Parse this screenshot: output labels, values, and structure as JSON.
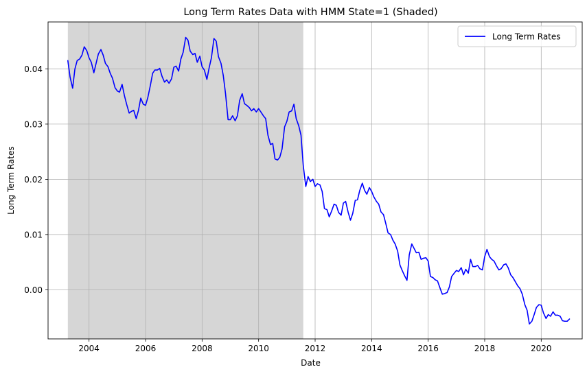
{
  "chart_data": {
    "type": "line",
    "title": "Long Term Rates Data with HMM State=1 (Shaded)",
    "xlabel": "Date",
    "ylabel": "Long Term Rates",
    "xlim": [
      2002.55,
      2021.45
    ],
    "ylim": [
      -0.0089,
      0.0485
    ],
    "grid": true,
    "legend": {
      "position": "top-right",
      "entries": [
        "Long Term Rates"
      ]
    },
    "x_ticks": [
      2004,
      2006,
      2008,
      2010,
      2012,
      2014,
      2016,
      2018,
      2020
    ],
    "x_tick_labels": [
      "2004",
      "2006",
      "2008",
      "2010",
      "2012",
      "2014",
      "2016",
      "2018",
      "2020"
    ],
    "y_ticks": [
      0.0,
      0.01,
      0.02,
      0.03,
      0.04
    ],
    "y_tick_labels": [
      "0.00",
      "0.01",
      "0.02",
      "0.03",
      "0.04"
    ],
    "shaded_regions": [
      {
        "from": 2003.25,
        "to": 2011.58,
        "state": 1
      }
    ],
    "colors": {
      "line": "#0000ff",
      "shade": "#d6d6d6",
      "grid": "#b0b0b0"
    },
    "series": [
      {
        "name": "Long Term Rates",
        "x": [
          2003.25,
          2003.33,
          2003.42,
          2003.5,
          2003.58,
          2003.67,
          2003.75,
          2003.83,
          2003.92,
          2004.0,
          2004.08,
          2004.17,
          2004.25,
          2004.33,
          2004.42,
          2004.5,
          2004.58,
          2004.67,
          2004.75,
          2004.83,
          2004.92,
          2005.0,
          2005.08,
          2005.17,
          2005.25,
          2005.33,
          2005.42,
          2005.5,
          2005.58,
          2005.67,
          2005.75,
          2005.83,
          2005.92,
          2006.0,
          2006.08,
          2006.17,
          2006.25,
          2006.33,
          2006.42,
          2006.5,
          2006.58,
          2006.67,
          2006.75,
          2006.83,
          2006.92,
          2007.0,
          2007.08,
          2007.17,
          2007.25,
          2007.33,
          2007.42,
          2007.5,
          2007.58,
          2007.67,
          2007.75,
          2007.83,
          2007.92,
          2008.0,
          2008.08,
          2008.17,
          2008.25,
          2008.33,
          2008.42,
          2008.5,
          2008.58,
          2008.67,
          2008.75,
          2008.83,
          2008.92,
          2009.0,
          2009.08,
          2009.17,
          2009.25,
          2009.33,
          2009.42,
          2009.5,
          2009.58,
          2009.67,
          2009.75,
          2009.83,
          2009.92,
          2010.0,
          2010.08,
          2010.17,
          2010.25,
          2010.33,
          2010.42,
          2010.5,
          2010.58,
          2010.67,
          2010.75,
          2010.83,
          2010.92,
          2011.0,
          2011.08,
          2011.17,
          2011.25,
          2011.33,
          2011.42,
          2011.5,
          2011.58,
          2011.67,
          2011.75,
          2011.83,
          2011.92,
          2012.0,
          2012.08,
          2012.17,
          2012.25,
          2012.33,
          2012.42,
          2012.5,
          2012.58,
          2012.67,
          2012.75,
          2012.83,
          2012.92,
          2013.0,
          2013.08,
          2013.17,
          2013.25,
          2013.33,
          2013.42,
          2013.5,
          2013.58,
          2013.67,
          2013.75,
          2013.83,
          2013.92,
          2014.0,
          2014.08,
          2014.17,
          2014.25,
          2014.33,
          2014.42,
          2014.5,
          2014.58,
          2014.67,
          2014.75,
          2014.83,
          2014.92,
          2015.0,
          2015.08,
          2015.17,
          2015.25,
          2015.33,
          2015.42,
          2015.5,
          2015.58,
          2015.67,
          2015.75,
          2015.83,
          2015.92,
          2016.0,
          2016.08,
          2016.17,
          2016.25,
          2016.33,
          2016.42,
          2016.5,
          2016.58,
          2016.67,
          2016.75,
          2016.83,
          2016.92,
          2017.0,
          2017.08,
          2017.17,
          2017.25,
          2017.33,
          2017.42,
          2017.5,
          2017.58,
          2017.67,
          2017.75,
          2017.83,
          2017.92,
          2018.0,
          2018.08,
          2018.17,
          2018.25,
          2018.33,
          2018.42,
          2018.5,
          2018.58,
          2018.67,
          2018.75,
          2018.83,
          2018.92,
          2019.0,
          2019.08,
          2019.17,
          2019.25,
          2019.33,
          2019.42,
          2019.5,
          2019.58,
          2019.67,
          2019.75,
          2019.83,
          2019.92,
          2020.0,
          2020.08,
          2020.17,
          2020.25,
          2020.33,
          2020.42,
          2020.5,
          2020.58,
          2020.67,
          2020.75,
          2020.83,
          2020.92,
          2021.0
        ],
        "values": [
          0.0415,
          0.0385,
          0.0365,
          0.04,
          0.0415,
          0.0418,
          0.0425,
          0.044,
          0.0433,
          0.042,
          0.0412,
          0.0393,
          0.041,
          0.0427,
          0.0435,
          0.0425,
          0.041,
          0.0404,
          0.0392,
          0.0383,
          0.0366,
          0.036,
          0.0358,
          0.0372,
          0.0352,
          0.0336,
          0.032,
          0.0323,
          0.0325,
          0.031,
          0.0325,
          0.0347,
          0.0336,
          0.0334,
          0.0348,
          0.037,
          0.0392,
          0.0398,
          0.0398,
          0.0401,
          0.0387,
          0.0376,
          0.038,
          0.0374,
          0.0382,
          0.0403,
          0.0405,
          0.0396,
          0.0418,
          0.043,
          0.0457,
          0.0452,
          0.0432,
          0.0426,
          0.0428,
          0.0412,
          0.0423,
          0.0404,
          0.0398,
          0.0381,
          0.0402,
          0.042,
          0.0455,
          0.045,
          0.0422,
          0.041,
          0.0388,
          0.0355,
          0.0308,
          0.0308,
          0.0315,
          0.0306,
          0.0315,
          0.0343,
          0.0355,
          0.0337,
          0.0334,
          0.033,
          0.0324,
          0.0328,
          0.0322,
          0.0328,
          0.0322,
          0.0315,
          0.031,
          0.028,
          0.0263,
          0.0265,
          0.0237,
          0.0235,
          0.024,
          0.0255,
          0.0295,
          0.0305,
          0.0322,
          0.0324,
          0.0336,
          0.031,
          0.0297,
          0.028,
          0.0225,
          0.0187,
          0.0205,
          0.0196,
          0.02,
          0.0187,
          0.0192,
          0.019,
          0.0178,
          0.0147,
          0.0145,
          0.0132,
          0.0142,
          0.0155,
          0.0153,
          0.014,
          0.0135,
          0.0157,
          0.016,
          0.014,
          0.0126,
          0.0138,
          0.0162,
          0.0163,
          0.018,
          0.0193,
          0.018,
          0.0173,
          0.0185,
          0.0178,
          0.0168,
          0.016,
          0.0155,
          0.0141,
          0.0136,
          0.012,
          0.0103,
          0.01,
          0.009,
          0.0083,
          0.007,
          0.0045,
          0.0035,
          0.0025,
          0.0017,
          0.0063,
          0.0083,
          0.0075,
          0.0067,
          0.0068,
          0.0055,
          0.0057,
          0.0058,
          0.0052,
          0.0024,
          0.0022,
          0.0018,
          0.0016,
          0.0003,
          -0.0008,
          -0.0007,
          -0.0005,
          0.0005,
          0.0024,
          0.003,
          0.0035,
          0.0033,
          0.004,
          0.0027,
          0.0037,
          0.003,
          0.0055,
          0.0042,
          0.0042,
          0.0044,
          0.0038,
          0.0036,
          0.006,
          0.0073,
          0.006,
          0.0055,
          0.0052,
          0.0043,
          0.0036,
          0.0038,
          0.0045,
          0.0047,
          0.004,
          0.0027,
          0.0022,
          0.0015,
          0.0007,
          0.0002,
          -0.0008,
          -0.0027,
          -0.0037,
          -0.0062,
          -0.0057,
          -0.0045,
          -0.0032,
          -0.0027,
          -0.0028,
          -0.0042,
          -0.0052,
          -0.0045,
          -0.0048,
          -0.004,
          -0.0046,
          -0.0046,
          -0.0048,
          -0.0056,
          -0.0057,
          -0.0057,
          -0.0053
        ]
      }
    ]
  }
}
